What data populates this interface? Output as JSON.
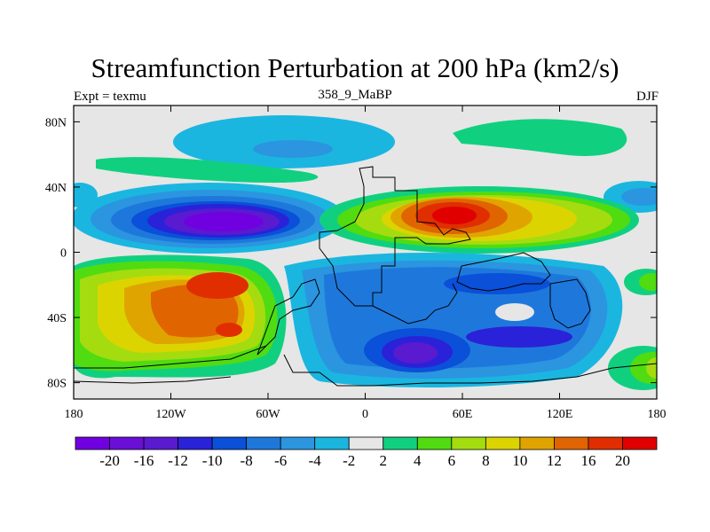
{
  "title": "Streamfunction Perturbation at 200 hPa (km2/s)",
  "left_label": "Expt = texmu",
  "center_label": "358_9_MaBP",
  "right_label": "DJF",
  "map": {
    "projection": "cylindrical-equidistant",
    "lon_range": [
      -180,
      180
    ],
    "lat_range": [
      -90,
      90
    ],
    "background": "#e6e6e6",
    "coastline_color": "#000000"
  },
  "x_ticks": [
    {
      "value": -180,
      "label": "180"
    },
    {
      "value": -120,
      "label": "120W"
    },
    {
      "value": -60,
      "label": "60W"
    },
    {
      "value": 0,
      "label": "0"
    },
    {
      "value": 60,
      "label": "60E"
    },
    {
      "value": 120,
      "label": "120E"
    },
    {
      "value": 180,
      "label": "180"
    }
  ],
  "y_ticks": [
    {
      "value": 80,
      "label": "80N"
    },
    {
      "value": 40,
      "label": "40N"
    },
    {
      "value": 0,
      "label": "0"
    },
    {
      "value": -40,
      "label": "40S"
    },
    {
      "value": -80,
      "label": "80S"
    }
  ],
  "colorbar": {
    "colors": [
      "#7100e0",
      "#6a0ed8",
      "#5a1ad0",
      "#2a22d8",
      "#0a50d8",
      "#1e78dc",
      "#2b95e0",
      "#1ab6e0",
      "#e6e6e6",
      "#10d080",
      "#50dc10",
      "#a4dc10",
      "#dcd400",
      "#e0a400",
      "#e06400",
      "#e02e00",
      "#e00000"
    ],
    "labels": [
      "-20",
      "-16",
      "-12",
      "-10",
      "-8",
      "-6",
      "-4",
      "-2",
      "2",
      "4",
      "6",
      "8",
      "10",
      "12",
      "16",
      "20"
    ]
  }
}
